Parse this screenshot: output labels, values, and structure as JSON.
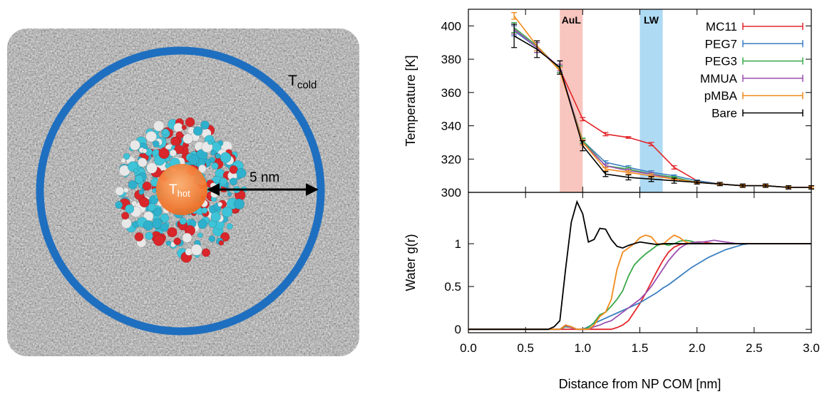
{
  "image": {
    "t_cold": {
      "main": "T",
      "sub": "cold"
    },
    "t_hot": {
      "main": "T",
      "sub": "hot"
    },
    "radius_label": "5 nm"
  },
  "chart_data": [
    {
      "type": "errorbar",
      "ylabel": "Temperature [K]",
      "xlim": [
        0,
        3
      ],
      "ylim": [
        300,
        410
      ],
      "yticks": [
        300,
        320,
        340,
        360,
        380,
        400
      ],
      "legend": "upper right",
      "bands": [
        {
          "label": "AuL",
          "from": 0.8,
          "to": 1.0,
          "color": "#f6b3aa"
        },
        {
          "label": "LW",
          "from": 1.5,
          "to": 1.7,
          "color": "#93cdef"
        }
      ],
      "x": [
        0.4,
        0.6,
        0.8,
        1.0,
        1.2,
        1.4,
        1.6,
        1.8,
        2.0,
        2.2,
        2.4,
        2.6,
        2.8,
        3.0
      ],
      "series": [
        {
          "name": "MC11",
          "color": "#e3262b",
          "values": [
            398,
            387,
            374,
            344,
            335,
            333,
            329,
            315,
            307,
            305,
            304,
            304,
            303,
            303
          ],
          "errors": [
            2,
            3,
            2,
            1,
            1,
            0.5,
            1,
            1,
            0.5,
            0.5,
            0.5,
            0.5,
            0.5,
            0.5
          ]
        },
        {
          "name": "PEG7",
          "color": "#3a7fc1",
          "values": [
            397,
            387,
            374,
            331,
            318,
            315,
            312,
            310,
            307,
            305,
            304,
            304,
            303,
            303
          ],
          "errors": [
            3,
            3,
            2,
            1.5,
            1,
            1,
            1,
            0.5,
            0.5,
            0.5,
            0.5,
            0.5,
            0.5,
            0.5
          ]
        },
        {
          "name": "PEG3",
          "color": "#3aa84a",
          "values": [
            399,
            388,
            374,
            331,
            316,
            314,
            311,
            309,
            306,
            305,
            304,
            304,
            303,
            303
          ],
          "errors": [
            3,
            3,
            2,
            1.5,
            1,
            1,
            1,
            0.5,
            0.5,
            0.5,
            0.5,
            0.5,
            0.5,
            0.5
          ]
        },
        {
          "name": "MMUA",
          "color": "#9a4fb0",
          "values": [
            398,
            387,
            375,
            330,
            316,
            313,
            311,
            308,
            306,
            305,
            304,
            304,
            303,
            303
          ],
          "errors": [
            3,
            3,
            2,
            1.5,
            1,
            1,
            1,
            0.5,
            0.5,
            0.5,
            0.5,
            0.5,
            0.5,
            0.5
          ]
        },
        {
          "name": "pMBA",
          "color": "#f28a1c",
          "values": [
            406,
            388,
            373,
            330,
            314,
            312,
            310,
            308,
            306,
            305,
            304,
            304,
            303,
            303
          ],
          "errors": [
            2,
            3,
            2,
            1.5,
            1,
            1,
            1,
            0.5,
            0.5,
            0.5,
            0.5,
            0.5,
            0.5,
            0.5
          ]
        },
        {
          "name": "Bare",
          "color": "#000000",
          "values": [
            394,
            386,
            375,
            328,
            311,
            309,
            308,
            307,
            306,
            305,
            304,
            304,
            303,
            303
          ],
          "errors": [
            7,
            5,
            4,
            3,
            1.5,
            1.5,
            1.5,
            1.5,
            1,
            1,
            1,
            1,
            1,
            1
          ]
        }
      ]
    },
    {
      "type": "line",
      "ylabel": "Water g(r)",
      "xlabel": "Distance from NP COM [nm]",
      "xlim": [
        0,
        3
      ],
      "ylim": [
        -0.04,
        1.6
      ],
      "xticks": [
        {
          "value": 0,
          "label": "0.0"
        },
        0.5,
        {
          "value": 1,
          "label": "1.0"
        },
        1.5,
        {
          "value": 2,
          "label": "2.0"
        },
        2.5,
        {
          "value": 3,
          "label": "3.0"
        }
      ],
      "yticks": [
        0,
        0.5,
        1
      ],
      "x": [
        0,
        0.05,
        0.1,
        0.15,
        0.2,
        0.25,
        0.3,
        0.35,
        0.4,
        0.45,
        0.5,
        0.55,
        0.6,
        0.65,
        0.7,
        0.75,
        0.8,
        0.85,
        0.9,
        0.95,
        1,
        1.05,
        1.1,
        1.15,
        1.2,
        1.25,
        1.3,
        1.35,
        1.4,
        1.45,
        1.5,
        1.55,
        1.6,
        1.65,
        1.7,
        1.75,
        1.8,
        1.85,
        1.9,
        1.95,
        2,
        2.05,
        2.1,
        2.15,
        2.2,
        2.25,
        2.3,
        2.35,
        2.4,
        2.45,
        2.5,
        2.55,
        2.6,
        2.65,
        2.7,
        2.75,
        2.8,
        2.85,
        2.9,
        2.95,
        3
      ],
      "series": [
        {
          "name": "MC11",
          "color": "#e3262b",
          "values": [
            0,
            0,
            0,
            0,
            0,
            0,
            0,
            0,
            0,
            0,
            0,
            0,
            0,
            0,
            0,
            0,
            0,
            0,
            0,
            0,
            0,
            0,
            0,
            0,
            0,
            0,
            0.02,
            0.05,
            0.1,
            0.2,
            0.3,
            0.42,
            0.55,
            0.68,
            0.8,
            0.9,
            0.96,
            0.99,
            1.0,
            1.01,
            1.02,
            1.02,
            1.01,
            1,
            1,
            1,
            1,
            1,
            1,
            1,
            1,
            1,
            1,
            1,
            1,
            1,
            1,
            1,
            1,
            1,
            1
          ]
        },
        {
          "name": "PEG7",
          "color": "#3a7fc1",
          "values": [
            0,
            0,
            0,
            0,
            0,
            0,
            0,
            0,
            0,
            0,
            0,
            0,
            0,
            0,
            0,
            0,
            0,
            0.05,
            0.03,
            0,
            0,
            0.03,
            0.07,
            0.1,
            0.13,
            0.16,
            0.19,
            0.22,
            0.25,
            0.28,
            0.31,
            0.35,
            0.39,
            0.43,
            0.48,
            0.52,
            0.57,
            0.62,
            0.67,
            0.72,
            0.76,
            0.8,
            0.84,
            0.87,
            0.9,
            0.93,
            0.95,
            0.97,
            0.99,
            1,
            1,
            1,
            1,
            1,
            1,
            1,
            1,
            1,
            1,
            1,
            1
          ]
        },
        {
          "name": "PEG3",
          "color": "#3aa84a",
          "values": [
            0,
            0,
            0,
            0,
            0,
            0,
            0,
            0,
            0,
            0,
            0,
            0,
            0,
            0,
            0,
            0,
            0,
            0.03,
            0.02,
            0,
            0,
            0.02,
            0.08,
            0.17,
            0.2,
            0.27,
            0.35,
            0.45,
            0.62,
            0.75,
            0.82,
            0.88,
            0.93,
            0.98,
            1.0,
            0.98,
            1.0,
            1.03,
            1.04,
            1.03,
            1.01,
            1,
            1,
            1,
            1,
            1,
            1,
            1,
            1,
            1,
            1,
            1,
            1,
            1,
            1,
            1,
            1,
            1,
            1,
            1,
            1
          ]
        },
        {
          "name": "MMUA",
          "color": "#9a4fb0",
          "values": [
            0,
            0,
            0,
            0,
            0,
            0,
            0,
            0,
            0,
            0,
            0,
            0,
            0,
            0,
            0,
            0,
            0,
            0.04,
            0.02,
            0,
            0,
            0,
            0.03,
            0.05,
            0.08,
            0.1,
            0.15,
            0.2,
            0.25,
            0.3,
            0.35,
            0.42,
            0.5,
            0.6,
            0.7,
            0.8,
            0.88,
            0.95,
            0.99,
            1.01,
            1.02,
            1.02,
            1.03,
            1.04,
            1.03,
            1.02,
            1.01,
            1,
            1,
            1,
            1,
            1,
            1,
            1,
            1,
            1,
            1,
            1,
            1,
            1,
            1
          ]
        },
        {
          "name": "pMBA",
          "color": "#f28a1c",
          "values": [
            0,
            0,
            0,
            0,
            0,
            0,
            0,
            0,
            0,
            0,
            0,
            0,
            0,
            0,
            0,
            0,
            0,
            0.05,
            0.03,
            0,
            0,
            0,
            0.05,
            0.15,
            0.2,
            0.35,
            0.7,
            0.9,
            0.95,
            1.0,
            1.07,
            1.1,
            1.08,
            1.0,
            0.99,
            1.05,
            1.1,
            1.07,
            1.02,
            1.0,
            1,
            1,
            1,
            1,
            1,
            1,
            1,
            1,
            1,
            1,
            1,
            1,
            1,
            1,
            1,
            1,
            1,
            1,
            1,
            1,
            1
          ]
        },
        {
          "name": "Bare",
          "color": "#000000",
          "values": [
            0,
            0,
            0,
            0,
            0,
            0,
            0,
            0,
            0,
            0,
            0,
            0,
            0,
            0,
            0,
            0.03,
            0.1,
            0.7,
            1.25,
            1.49,
            1.35,
            1.02,
            1.05,
            1.18,
            1.17,
            1.05,
            0.97,
            0.95,
            0.98,
            1.0,
            1.02,
            1.01,
            1.0,
            0.99,
            1,
            1,
            1,
            1,
            1,
            1,
            1,
            1,
            1,
            1,
            1,
            1,
            1,
            1,
            1,
            1,
            1,
            1,
            1,
            1,
            1,
            1,
            1,
            1,
            1,
            1,
            1
          ]
        }
      ]
    }
  ]
}
